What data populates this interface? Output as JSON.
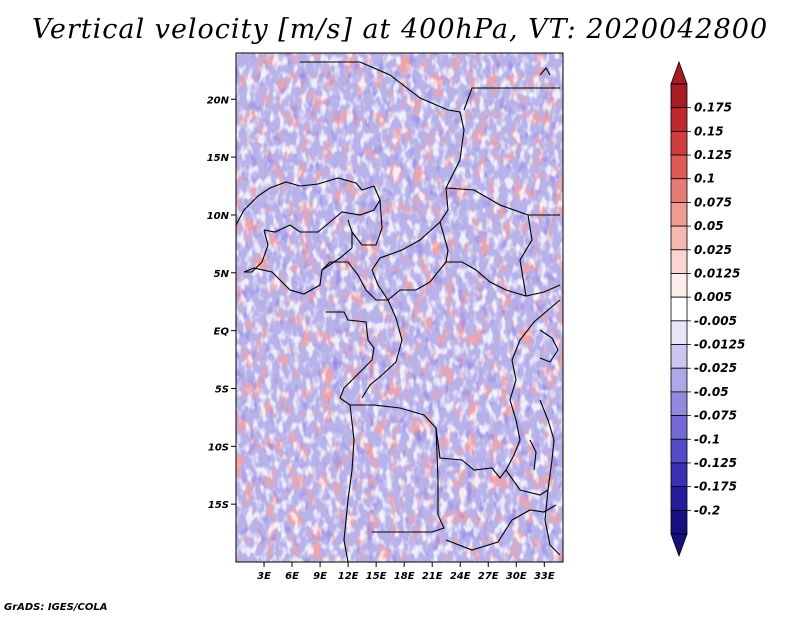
{
  "title": "Vertical velocity [m/s] at 400hPa, VT: 2020042800",
  "credit": "GrADS: IGES/COLA",
  "chart_data": {
    "type": "heatmap",
    "field": "Vertical velocity",
    "units": "m/s",
    "level": "400hPa",
    "valid_time": "2020042800",
    "xlim": [
      0,
      35
    ],
    "ylim": [
      -20,
      24
    ],
    "x_ticks": [
      {
        "value": 3,
        "label": "3E"
      },
      {
        "value": 6,
        "label": "6E"
      },
      {
        "value": 9,
        "label": "9E"
      },
      {
        "value": 12,
        "label": "12E"
      },
      {
        "value": 15,
        "label": "15E"
      },
      {
        "value": 18,
        "label": "18E"
      },
      {
        "value": 21,
        "label": "21E"
      },
      {
        "value": 24,
        "label": "24E"
      },
      {
        "value": 27,
        "label": "27E"
      },
      {
        "value": 30,
        "label": "30E"
      },
      {
        "value": 33,
        "label": "33E"
      }
    ],
    "y_ticks": [
      {
        "value": 20,
        "label": "20N"
      },
      {
        "value": 15,
        "label": "15N"
      },
      {
        "value": 10,
        "label": "10N"
      },
      {
        "value": 5,
        "label": "5N"
      },
      {
        "value": 0,
        "label": "EQ"
      },
      {
        "value": -5,
        "label": "5S"
      },
      {
        "value": -10,
        "label": "10S"
      },
      {
        "value": -15,
        "label": "15S"
      }
    ],
    "colorbar": {
      "levels": [
        "0.175",
        "0.15",
        "0.125",
        "0.1",
        "0.075",
        "0.05",
        "0.025",
        "0.0125",
        "0.005",
        "-0.005",
        "-0.0125",
        "-0.025",
        "-0.05",
        "-0.075",
        "-0.1",
        "-0.125",
        "-0.175",
        "-0.2"
      ],
      "colors": [
        "#a51c24",
        "#c0282c",
        "#d13d3c",
        "#de5a55",
        "#e67b73",
        "#ee9b92",
        "#f4bab2",
        "#f9d6d0",
        "#fdeeeb",
        "#ffffff",
        "#e7e5f8",
        "#cbc7f0",
        "#aea8e8",
        "#918ae0",
        "#736ad5",
        "#544bc8",
        "#3a30b5",
        "#251c9c",
        "#170f80"
      ],
      "overflow_high": "#a51c24",
      "overflow_low": "#170f80"
    },
    "grid": false,
    "legend_position": "right"
  }
}
